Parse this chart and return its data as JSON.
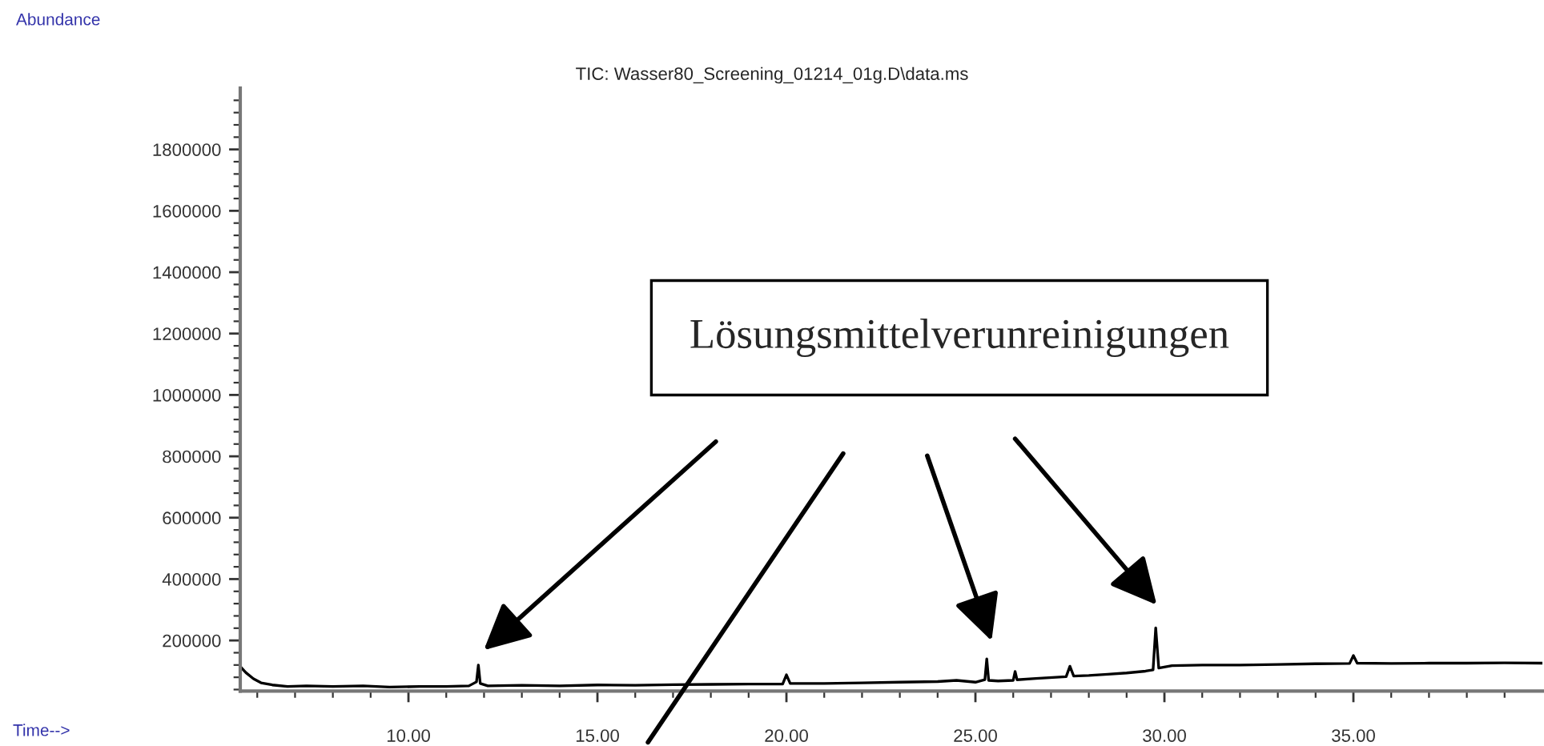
{
  "chart_data": {
    "type": "line",
    "title": "TIC: Wasser80_Screening_01214_01g.D\\data.ms",
    "annotations": [
      "Abundance",
      "Time-->",
      "Lösungsmittelverunreinigungen"
    ],
    "x": [
      5.55,
      5.7,
      5.9,
      6.1,
      6.4,
      6.8,
      7.3,
      8,
      8.8,
      9.5,
      10.3,
      11,
      11.6,
      11.8,
      11.85,
      11.9,
      12.1,
      13,
      14,
      15,
      16,
      17,
      18,
      19,
      19.9,
      20.0,
      20.1,
      21,
      22,
      23,
      24,
      24.5,
      25,
      25.25,
      25.3,
      25.35,
      25.6,
      26.0,
      26.05,
      26.1,
      26.6,
      27.4,
      27.5,
      27.6,
      28,
      28.5,
      29,
      29.5,
      29.7,
      29.77,
      29.85,
      30.2,
      31,
      32,
      33,
      34,
      34.9,
      35.0,
      35.1,
      36,
      37,
      38,
      39,
      40.0
    ],
    "series": [
      {
        "color": "#000000",
        "values": [
          115000,
          95000,
          75000,
          62000,
          55000,
          50000,
          52000,
          50000,
          52000,
          48000,
          50000,
          50000,
          52000,
          65000,
          120000,
          60000,
          52000,
          54000,
          52000,
          55000,
          54000,
          56000,
          57000,
          58000,
          58000,
          88000,
          60000,
          60000,
          62000,
          64000,
          66000,
          70000,
          64000,
          72000,
          140000,
          70000,
          68000,
          70000,
          99000,
          72000,
          76000,
          82000,
          116000,
          84000,
          86000,
          90000,
          94000,
          100000,
          104000,
          241000,
          110000,
          118000,
          120000,
          120000,
          122000,
          124000,
          125000,
          151000,
          126000,
          125000,
          126000,
          126000,
          127000,
          126000
        ]
      }
    ],
    "xlim": [
      5.55,
      40.0
    ],
    "ylim": [
      35000,
      2000000
    ],
    "xticks": [
      {
        "value": 6,
        "label": null
      },
      {
        "value": 7,
        "label": null
      },
      {
        "value": 8,
        "label": null
      },
      {
        "value": 9,
        "label": null
      },
      {
        "value": 10,
        "label": "10.00"
      },
      {
        "value": 11,
        "label": null
      },
      {
        "value": 12,
        "label": null
      },
      {
        "value": 13,
        "label": null
      },
      {
        "value": 14,
        "label": null
      },
      {
        "value": 15,
        "label": "15.00"
      },
      {
        "value": 16,
        "label": null
      },
      {
        "value": 17,
        "label": null
      },
      {
        "value": 18,
        "label": null
      },
      {
        "value": 19,
        "label": null
      },
      {
        "value": 20,
        "label": "20.00"
      },
      {
        "value": 21,
        "label": null
      },
      {
        "value": 22,
        "label": null
      },
      {
        "value": 23,
        "label": null
      },
      {
        "value": 24,
        "label": null
      },
      {
        "value": 25,
        "label": "25.00"
      },
      {
        "value": 26,
        "label": null
      },
      {
        "value": 27,
        "label": null
      },
      {
        "value": 28,
        "label": null
      },
      {
        "value": 29,
        "label": null
      },
      {
        "value": 30,
        "label": "30.00"
      },
      {
        "value": 31,
        "label": null
      },
      {
        "value": 32,
        "label": null
      },
      {
        "value": 33,
        "label": null
      },
      {
        "value": 34,
        "label": null
      },
      {
        "value": 35,
        "label": "35.00"
      },
      {
        "value": 36,
        "label": null
      },
      {
        "value": 37,
        "label": null
      },
      {
        "value": 38,
        "label": null
      },
      {
        "value": 39,
        "label": null
      }
    ],
    "yticks": [
      {
        "value": 40000,
        "label": null
      },
      {
        "value": 80000,
        "label": null
      },
      {
        "value": 120000,
        "label": null
      },
      {
        "value": 160000,
        "label": null
      },
      200000,
      {
        "value": 240000,
        "label": null
      },
      {
        "value": 280000,
        "label": null
      },
      {
        "value": 320000,
        "label": null
      },
      {
        "value": 360000,
        "label": null
      },
      400000,
      {
        "value": 440000,
        "label": null
      },
      {
        "value": 480000,
        "label": null
      },
      {
        "value": 520000,
        "label": null
      },
      {
        "value": 560000,
        "label": null
      },
      600000,
      {
        "value": 640000,
        "label": null
      },
      {
        "value": 680000,
        "label": null
      },
      {
        "value": 720000,
        "label": null
      },
      {
        "value": 760000,
        "label": null
      },
      800000,
      {
        "value": 840000,
        "label": null
      },
      {
        "value": 880000,
        "label": null
      },
      {
        "value": 920000,
        "label": null
      },
      {
        "value": 960000,
        "label": null
      },
      1000000,
      {
        "value": 1040000,
        "label": null
      },
      {
        "value": 1080000,
        "label": null
      },
      {
        "value": 1120000,
        "label": null
      },
      {
        "value": 1160000,
        "label": null
      },
      1200000,
      {
        "value": 1240000,
        "label": null
      },
      {
        "value": 1280000,
        "label": null
      },
      {
        "value": 1320000,
        "label": null
      },
      {
        "value": 1360000,
        "label": null
      },
      1400000,
      {
        "value": 1440000,
        "label": null
      },
      {
        "value": 1480000,
        "label": null
      },
      {
        "value": 1520000,
        "label": null
      },
      {
        "value": 1560000,
        "label": null
      },
      1600000,
      {
        "value": 1640000,
        "label": null
      },
      {
        "value": 1680000,
        "label": null
      },
      {
        "value": 1720000,
        "label": null
      },
      {
        "value": 1760000,
        "label": null
      },
      1800000,
      {
        "value": 1840000,
        "label": null
      },
      {
        "value": 1880000,
        "label": null
      },
      {
        "value": 1920000,
        "label": null
      },
      {
        "value": 1960000,
        "label": null
      }
    ],
    "grid": false,
    "legend": false
  }
}
